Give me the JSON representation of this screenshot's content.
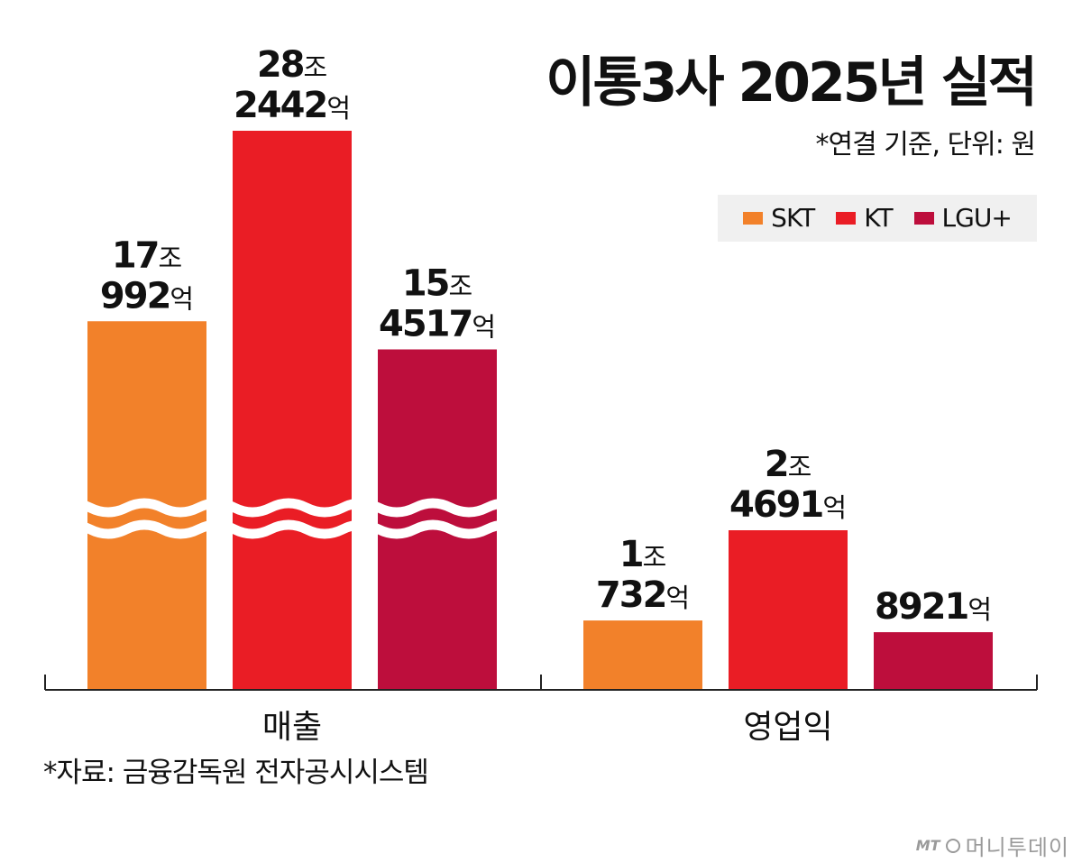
{
  "title": "이통3사 2025년 실적",
  "subtitle": "*연결 기준, 단위: 원",
  "legend": {
    "skt": "SKT",
    "kt": "KT",
    "lgu": "LGU+"
  },
  "colors": {
    "skt": "#f2812a",
    "kt": "#ea1d25",
    "lgu": "#bd0e3c"
  },
  "source": "*자료: 금융감독원 전자공시시스템",
  "brand": {
    "mark": "MT",
    "name": "머니투데이"
  },
  "chart_data": {
    "type": "bar",
    "title": "이통3사 2025년 실적",
    "unit_note": "*연결 기준, 단위: 원",
    "categories": [
      "매출",
      "영업익"
    ],
    "series": [
      {
        "name": "SKT",
        "key": "skt",
        "values_eok": [
          170992,
          10732
        ],
        "labels": [
          [
            "17",
            "992"
          ],
          [
            "1",
            "732"
          ]
        ]
      },
      {
        "name": "KT",
        "key": "kt",
        "values_eok": [
          282442,
          24691
        ],
        "labels": [
          [
            "28",
            "2442"
          ],
          [
            "2",
            "4691"
          ]
        ]
      },
      {
        "name": "LGU+",
        "key": "lgu",
        "values_eok": [
          154517,
          8921
        ],
        "labels": [
          [
            "15",
            "4517"
          ],
          [
            null,
            "8921"
          ]
        ]
      }
    ],
    "unit_large": "조",
    "unit_small": "억",
    "axis_break_on": "매출",
    "legend_position": "top-right",
    "grid": false
  }
}
